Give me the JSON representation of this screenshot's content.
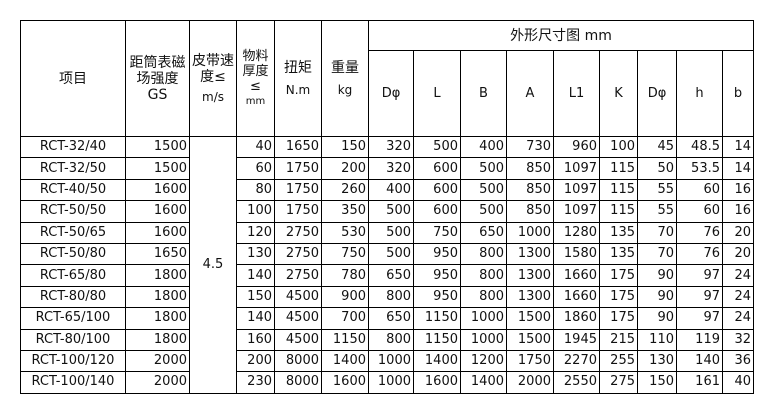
{
  "header": {
    "item": "项目",
    "gs": "距筒表磁场强度 GS",
    "speed": "皮带速度≤",
    "speed_unit": "m/s",
    "thickness": "物料厚度≤",
    "thickness_unit": "mm",
    "torque": "扭矩",
    "torque_unit": "N.m",
    "weight": "重量",
    "weight_unit": "kg",
    "dims_title": "外形尺寸图 mm",
    "dims": [
      "Dφ",
      "L",
      "B",
      "A",
      "L1",
      "K",
      "Dφ",
      "h",
      "b"
    ]
  },
  "speed_value": "4.5",
  "rows": [
    [
      "RCT-32/40",
      "1500",
      "40",
      "1650",
      "150",
      "320",
      "500",
      "400",
      "730",
      "960",
      "100",
      "45",
      "48.5",
      "14"
    ],
    [
      "RCT-32/50",
      "1500",
      "60",
      "1750",
      "200",
      "320",
      "600",
      "500",
      "850",
      "1097",
      "115",
      "50",
      "53.5",
      "14"
    ],
    [
      "RCT-40/50",
      "1600",
      "80",
      "1750",
      "260",
      "400",
      "600",
      "500",
      "850",
      "1097",
      "115",
      "55",
      "60",
      "16"
    ],
    [
      "RCT-50/50",
      "1600",
      "100",
      "1750",
      "350",
      "500",
      "600",
      "500",
      "850",
      "1097",
      "115",
      "55",
      "60",
      "16"
    ],
    [
      "RCT-50/65",
      "1600",
      "120",
      "2750",
      "530",
      "500",
      "750",
      "650",
      "1000",
      "1280",
      "135",
      "70",
      "76",
      "20"
    ],
    [
      "RCT-50/80",
      "1650",
      "130",
      "2750",
      "750",
      "500",
      "950",
      "800",
      "1300",
      "1580",
      "135",
      "70",
      "76",
      "20"
    ],
    [
      "RCT-65/80",
      "1800",
      "140",
      "2750",
      "780",
      "650",
      "950",
      "800",
      "1300",
      "1660",
      "175",
      "90",
      "97",
      "24"
    ],
    [
      "RCT-80/80",
      "1800",
      "150",
      "4500",
      "900",
      "800",
      "950",
      "800",
      "1300",
      "1660",
      "175",
      "90",
      "97",
      "24"
    ],
    [
      "RCT-65/100",
      "1800",
      "140",
      "4500",
      "700",
      "650",
      "1150",
      "1000",
      "1500",
      "1860",
      "175",
      "90",
      "97",
      "24"
    ],
    [
      "RCT-80/100",
      "1800",
      "160",
      "4500",
      "1150",
      "800",
      "1150",
      "1000",
      "1500",
      "1945",
      "215",
      "110",
      "119",
      "32"
    ],
    [
      "RCT-100/120",
      "2000",
      "200",
      "8000",
      "1400",
      "1000",
      "1400",
      "1200",
      "1750",
      "2270",
      "255",
      "130",
      "140",
      "36"
    ],
    [
      "RCT-100/140",
      "2000",
      "230",
      "8000",
      "1600",
      "1000",
      "1600",
      "1400",
      "2000",
      "2550",
      "275",
      "150",
      "161",
      "40"
    ]
  ]
}
